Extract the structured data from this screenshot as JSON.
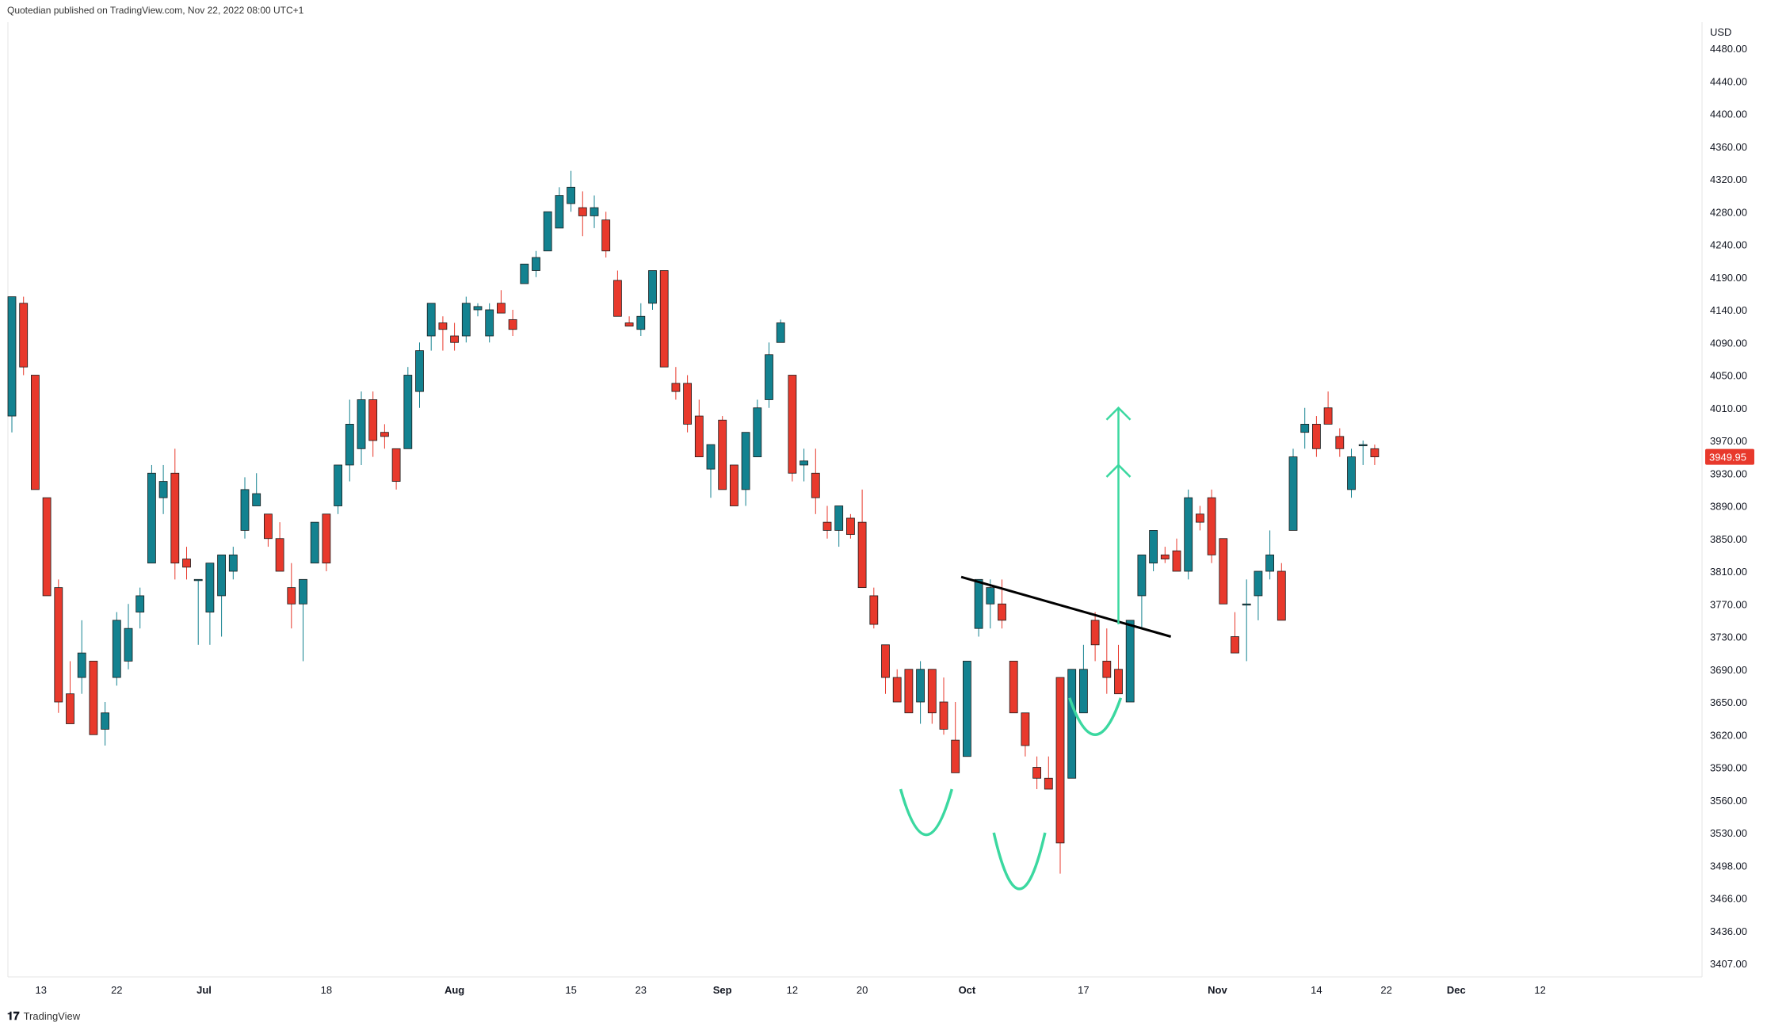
{
  "header": {
    "text": "Quotedian published on TradingView.com, Nov 22, 2022 08:00 UTC+1"
  },
  "watermark": {
    "text": "TradingView",
    "logo_icon": "tradingview-logo-icon"
  },
  "colors": {
    "up": "#138290",
    "down": "#e8392c",
    "bg": "#ffffff",
    "pattern": "#3bd8a0",
    "trendline": "#000000",
    "border": "#e6e6e6"
  },
  "chart_data": {
    "type": "candlestick",
    "currency_label": "USD",
    "last_price_label": "3949.95",
    "y_ticks": [
      "4480.00",
      "4440.00",
      "4400.00",
      "4360.00",
      "4320.00",
      "4280.00",
      "4240.00",
      "4190.00",
      "4140.00",
      "4090.00",
      "4050.00",
      "4010.00",
      "3970.00",
      "3930.00",
      "3890.00",
      "3850.00",
      "3810.00",
      "3770.00",
      "3730.00",
      "3690.00",
      "3650.00",
      "3620.00",
      "3590.00",
      "3560.00",
      "3530.00",
      "3498.00",
      "3466.00",
      "3436.00",
      "3407.00"
    ],
    "x_ticks": [
      {
        "label": "13",
        "bar": 2.5
      },
      {
        "label": "22",
        "bar": 9
      },
      {
        "label": "Jul",
        "bar": 16.5
      },
      {
        "label": "18",
        "bar": 27
      },
      {
        "label": "Aug",
        "bar": 38
      },
      {
        "label": "15",
        "bar": 48
      },
      {
        "label": "23",
        "bar": 54
      },
      {
        "label": "Sep",
        "bar": 61
      },
      {
        "label": "12",
        "bar": 67
      },
      {
        "label": "20",
        "bar": 73
      },
      {
        "label": "Oct",
        "bar": 82
      },
      {
        "label": "17",
        "bar": 92
      },
      {
        "label": "Nov",
        "bar": 103.5
      },
      {
        "label": "14",
        "bar": 112
      },
      {
        "label": "22",
        "bar": 118
      },
      {
        "label": "Dec",
        "bar": 124
      },
      {
        "label": "12",
        "bar": 131.2
      }
    ],
    "bars": [
      {
        "o": 4000,
        "h": 4160,
        "l": 3980,
        "c": 4160
      },
      {
        "o": 4150,
        "h": 4160,
        "l": 4050,
        "c": 4060
      },
      {
        "o": 4050,
        "h": 4050,
        "l": 3910,
        "c": 3910
      },
      {
        "o": 3900,
        "h": 3900,
        "l": 3780,
        "c": 3780
      },
      {
        "o": 3790,
        "h": 3800,
        "l": 3640,
        "c": 3650
      },
      {
        "o": 3660,
        "h": 3700,
        "l": 3630,
        "c": 3630
      },
      {
        "o": 3680,
        "h": 3750,
        "l": 3660,
        "c": 3710
      },
      {
        "o": 3700,
        "h": 3700,
        "l": 3620,
        "c": 3620
      },
      {
        "o": 3625,
        "h": 3650,
        "l": 3610,
        "c": 3640
      },
      {
        "o": 3680,
        "h": 3760,
        "l": 3670,
        "c": 3750
      },
      {
        "o": 3700,
        "h": 3770,
        "l": 3690,
        "c": 3740
      },
      {
        "o": 3760,
        "h": 3790,
        "l": 3740,
        "c": 3780
      },
      {
        "o": 3820,
        "h": 3940,
        "l": 3820,
        "c": 3930
      },
      {
        "o": 3900,
        "h": 3940,
        "l": 3880,
        "c": 3920
      },
      {
        "o": 3930,
        "h": 3960,
        "l": 3800,
        "c": 3820
      },
      {
        "o": 3825,
        "h": 3840,
        "l": 3800,
        "c": 3815
      },
      {
        "o": 3800,
        "h": 3800,
        "l": 3720,
        "c": 3800
      },
      {
        "o": 3760,
        "h": 3790,
        "l": 3720,
        "c": 3820
      },
      {
        "o": 3780,
        "h": 3810,
        "l": 3730,
        "c": 3830
      },
      {
        "o": 3810,
        "h": 3840,
        "l": 3800,
        "c": 3830
      },
      {
        "o": 3860,
        "h": 3925,
        "l": 3850,
        "c": 3910
      },
      {
        "o": 3890,
        "h": 3930,
        "l": 3890,
        "c": 3905
      },
      {
        "o": 3880,
        "h": 3880,
        "l": 3840,
        "c": 3850
      },
      {
        "o": 3850,
        "h": 3870,
        "l": 3810,
        "c": 3810
      },
      {
        "o": 3790,
        "h": 3820,
        "l": 3740,
        "c": 3770
      },
      {
        "o": 3770,
        "h": 3790,
        "l": 3700,
        "c": 3800
      },
      {
        "o": 3820,
        "h": 3860,
        "l": 3820,
        "c": 3870
      },
      {
        "o": 3880,
        "h": 3880,
        "l": 3810,
        "c": 3820
      },
      {
        "o": 3890,
        "h": 3940,
        "l": 3880,
        "c": 3940
      },
      {
        "o": 3940,
        "h": 4020,
        "l": 3920,
        "c": 3990
      },
      {
        "o": 3960,
        "h": 4030,
        "l": 3940,
        "c": 4020
      },
      {
        "o": 4020,
        "h": 4030,
        "l": 3950,
        "c": 3970
      },
      {
        "o": 3980,
        "h": 3990,
        "l": 3960,
        "c": 3975
      },
      {
        "o": 3960,
        "h": 3960,
        "l": 3910,
        "c": 3920
      },
      {
        "o": 3960,
        "h": 4060,
        "l": 3960,
        "c": 4050
      },
      {
        "o": 4030,
        "h": 4090,
        "l": 4010,
        "c": 4080
      },
      {
        "o": 4100,
        "h": 4150,
        "l": 4080,
        "c": 4150
      },
      {
        "o": 4120,
        "h": 4130,
        "l": 4080,
        "c": 4110
      },
      {
        "o": 4100,
        "h": 4120,
        "l": 4080,
        "c": 4090
      },
      {
        "o": 4100,
        "h": 4160,
        "l": 4090,
        "c": 4150
      },
      {
        "o": 4140,
        "h": 4150,
        "l": 4130,
        "c": 4145
      },
      {
        "o": 4100,
        "h": 4150,
        "l": 4090,
        "c": 4140
      },
      {
        "o": 4150,
        "h": 4170,
        "l": 4140,
        "c": 4135
      },
      {
        "o": 4125,
        "h": 4140,
        "l": 4100,
        "c": 4110
      },
      {
        "o": 4180,
        "h": 4210,
        "l": 4180,
        "c": 4210
      },
      {
        "o": 4200,
        "h": 4230,
        "l": 4190,
        "c": 4220
      },
      {
        "o": 4230,
        "h": 4280,
        "l": 4230,
        "c": 4280
      },
      {
        "o": 4260,
        "h": 4310,
        "l": 4260,
        "c": 4300
      },
      {
        "o": 4290,
        "h": 4330,
        "l": 4280,
        "c": 4310
      },
      {
        "o": 4285,
        "h": 4305,
        "l": 4250,
        "c": 4275
      },
      {
        "o": 4275,
        "h": 4300,
        "l": 4260,
        "c": 4285
      },
      {
        "o": 4270,
        "h": 4280,
        "l": 4220,
        "c": 4230
      },
      {
        "o": 4185,
        "h": 4200,
        "l": 4130,
        "c": 4130
      },
      {
        "o": 4120,
        "h": 4130,
        "l": 4120,
        "c": 4115
      },
      {
        "o": 4110,
        "h": 4150,
        "l": 4100,
        "c": 4130
      },
      {
        "o": 4150,
        "h": 4200,
        "l": 4140,
        "c": 4200
      },
      {
        "o": 4200,
        "h": 4200,
        "l": 4060,
        "c": 4060
      },
      {
        "o": 4040,
        "h": 4060,
        "l": 4020,
        "c": 4030
      },
      {
        "o": 4040,
        "h": 4050,
        "l": 3980,
        "c": 3990
      },
      {
        "o": 4000,
        "h": 4020,
        "l": 3950,
        "c": 3950
      },
      {
        "o": 3935,
        "h": 3960,
        "l": 3900,
        "c": 3965
      },
      {
        "o": 3995,
        "h": 4000,
        "l": 3910,
        "c": 3910
      },
      {
        "o": 3940,
        "h": 3940,
        "l": 3890,
        "c": 3890
      },
      {
        "o": 3910,
        "h": 3980,
        "l": 3890,
        "c": 3980
      },
      {
        "o": 3950,
        "h": 4020,
        "l": 3950,
        "c": 4010
      },
      {
        "o": 4020,
        "h": 4090,
        "l": 4010,
        "c": 4075
      },
      {
        "o": 4090,
        "h": 4125,
        "l": 4090,
        "c": 4120
      },
      {
        "o": 4050,
        "h": 4050,
        "l": 3920,
        "c": 3930
      },
      {
        "o": 3940,
        "h": 3960,
        "l": 3920,
        "c": 3945
      },
      {
        "o": 3930,
        "h": 3960,
        "l": 3880,
        "c": 3900
      },
      {
        "o": 3870,
        "h": 3890,
        "l": 3850,
        "c": 3860
      },
      {
        "o": 3860,
        "h": 3890,
        "l": 3840,
        "c": 3890
      },
      {
        "o": 3875,
        "h": 3880,
        "l": 3850,
        "c": 3855
      },
      {
        "o": 3870,
        "h": 3910,
        "l": 3790,
        "c": 3790
      },
      {
        "o": 3780,
        "h": 3790,
        "l": 3740,
        "c": 3745
      },
      {
        "o": 3720,
        "h": 3720,
        "l": 3660,
        "c": 3680
      },
      {
        "o": 3680,
        "h": 3690,
        "l": 3650,
        "c": 3650
      },
      {
        "o": 3690,
        "h": 3690,
        "l": 3640,
        "c": 3640
      },
      {
        "o": 3650,
        "h": 3700,
        "l": 3630,
        "c": 3690
      },
      {
        "o": 3690,
        "h": 3690,
        "l": 3630,
        "c": 3640
      },
      {
        "o": 3650,
        "h": 3680,
        "l": 3620,
        "c": 3625
      },
      {
        "o": 3615,
        "h": 3650,
        "l": 3585,
        "c": 3585
      },
      {
        "o": 3600,
        "h": 3700,
        "l": 3600,
        "c": 3700
      },
      {
        "o": 3740,
        "h": 3800,
        "l": 3730,
        "c": 3800
      },
      {
        "o": 3770,
        "h": 3800,
        "l": 3740,
        "c": 3790
      },
      {
        "o": 3770,
        "h": 3800,
        "l": 3740,
        "c": 3750
      },
      {
        "o": 3700,
        "h": 3700,
        "l": 3640,
        "c": 3640
      },
      {
        "o": 3640,
        "h": 3640,
        "l": 3600,
        "c": 3610
      },
      {
        "o": 3590,
        "h": 3600,
        "l": 3570,
        "c": 3580
      },
      {
        "o": 3580,
        "h": 3600,
        "l": 3570,
        "c": 3570
      },
      {
        "o": 3680,
        "h": 3680,
        "l": 3490,
        "c": 3520
      },
      {
        "o": 3580,
        "h": 3690,
        "l": 3580,
        "c": 3690
      },
      {
        "o": 3640,
        "h": 3720,
        "l": 3640,
        "c": 3690
      },
      {
        "o": 3750,
        "h": 3760,
        "l": 3700,
        "c": 3720
      },
      {
        "o": 3700,
        "h": 3740,
        "l": 3660,
        "c": 3680
      },
      {
        "o": 3690,
        "h": 3720,
        "l": 3660,
        "c": 3660
      },
      {
        "o": 3650,
        "h": 3740,
        "l": 3650,
        "c": 3750
      },
      {
        "o": 3780,
        "h": 3810,
        "l": 3740,
        "c": 3830
      },
      {
        "o": 3820,
        "h": 3860,
        "l": 3810,
        "c": 3860
      },
      {
        "o": 3830,
        "h": 3840,
        "l": 3820,
        "c": 3825
      },
      {
        "o": 3835,
        "h": 3850,
        "l": 3810,
        "c": 3810
      },
      {
        "o": 3810,
        "h": 3910,
        "l": 3800,
        "c": 3900
      },
      {
        "o": 3880,
        "h": 3890,
        "l": 3860,
        "c": 3870
      },
      {
        "o": 3900,
        "h": 3910,
        "l": 3820,
        "c": 3830
      },
      {
        "o": 3850,
        "h": 3850,
        "l": 3770,
        "c": 3770
      },
      {
        "o": 3730,
        "h": 3760,
        "l": 3710,
        "c": 3710
      },
      {
        "o": 3770,
        "h": 3800,
        "l": 3700,
        "c": 3770
      },
      {
        "o": 3780,
        "h": 3810,
        "l": 3750,
        "c": 3810
      },
      {
        "o": 3810,
        "h": 3860,
        "l": 3800,
        "c": 3830
      },
      {
        "o": 3810,
        "h": 3820,
        "l": 3750,
        "c": 3750
      },
      {
        "o": 3860,
        "h": 3960,
        "l": 3860,
        "c": 3950
      },
      {
        "o": 3980,
        "h": 4010,
        "l": 3960,
        "c": 3990
      },
      {
        "o": 3990,
        "h": 4000,
        "l": 3950,
        "c": 3960
      },
      {
        "o": 4010,
        "h": 4030,
        "l": 3990,
        "c": 3990
      },
      {
        "o": 3975,
        "h": 3985,
        "l": 3950,
        "c": 3960
      },
      {
        "o": 3910,
        "h": 3960,
        "l": 3900,
        "c": 3950
      },
      {
        "o": 3965,
        "h": 3970,
        "l": 3940,
        "c": 3965
      },
      {
        "o": 3960,
        "h": 3965,
        "l": 3940,
        "c": 3950
      }
    ],
    "annotations": {
      "neckline": [
        {
          "bar": 81.5,
          "price": 3803
        },
        {
          "bar": 99.5,
          "price": 3730
        }
      ],
      "target_arrow": {
        "bar": 95,
        "from": 3745,
        "to": 4010,
        "mid": 3940
      },
      "cups": [
        {
          "bar": 78.5,
          "top": 3570,
          "bottom": 3528,
          "half_width_bars": 2.2
        },
        {
          "bar": 86.5,
          "top": 3530,
          "bottom": 3475,
          "half_width_bars": 2.2
        },
        {
          "bar": 93,
          "top": 3655,
          "bottom": 3620,
          "half_width_bars": 2.2
        }
      ]
    }
  }
}
